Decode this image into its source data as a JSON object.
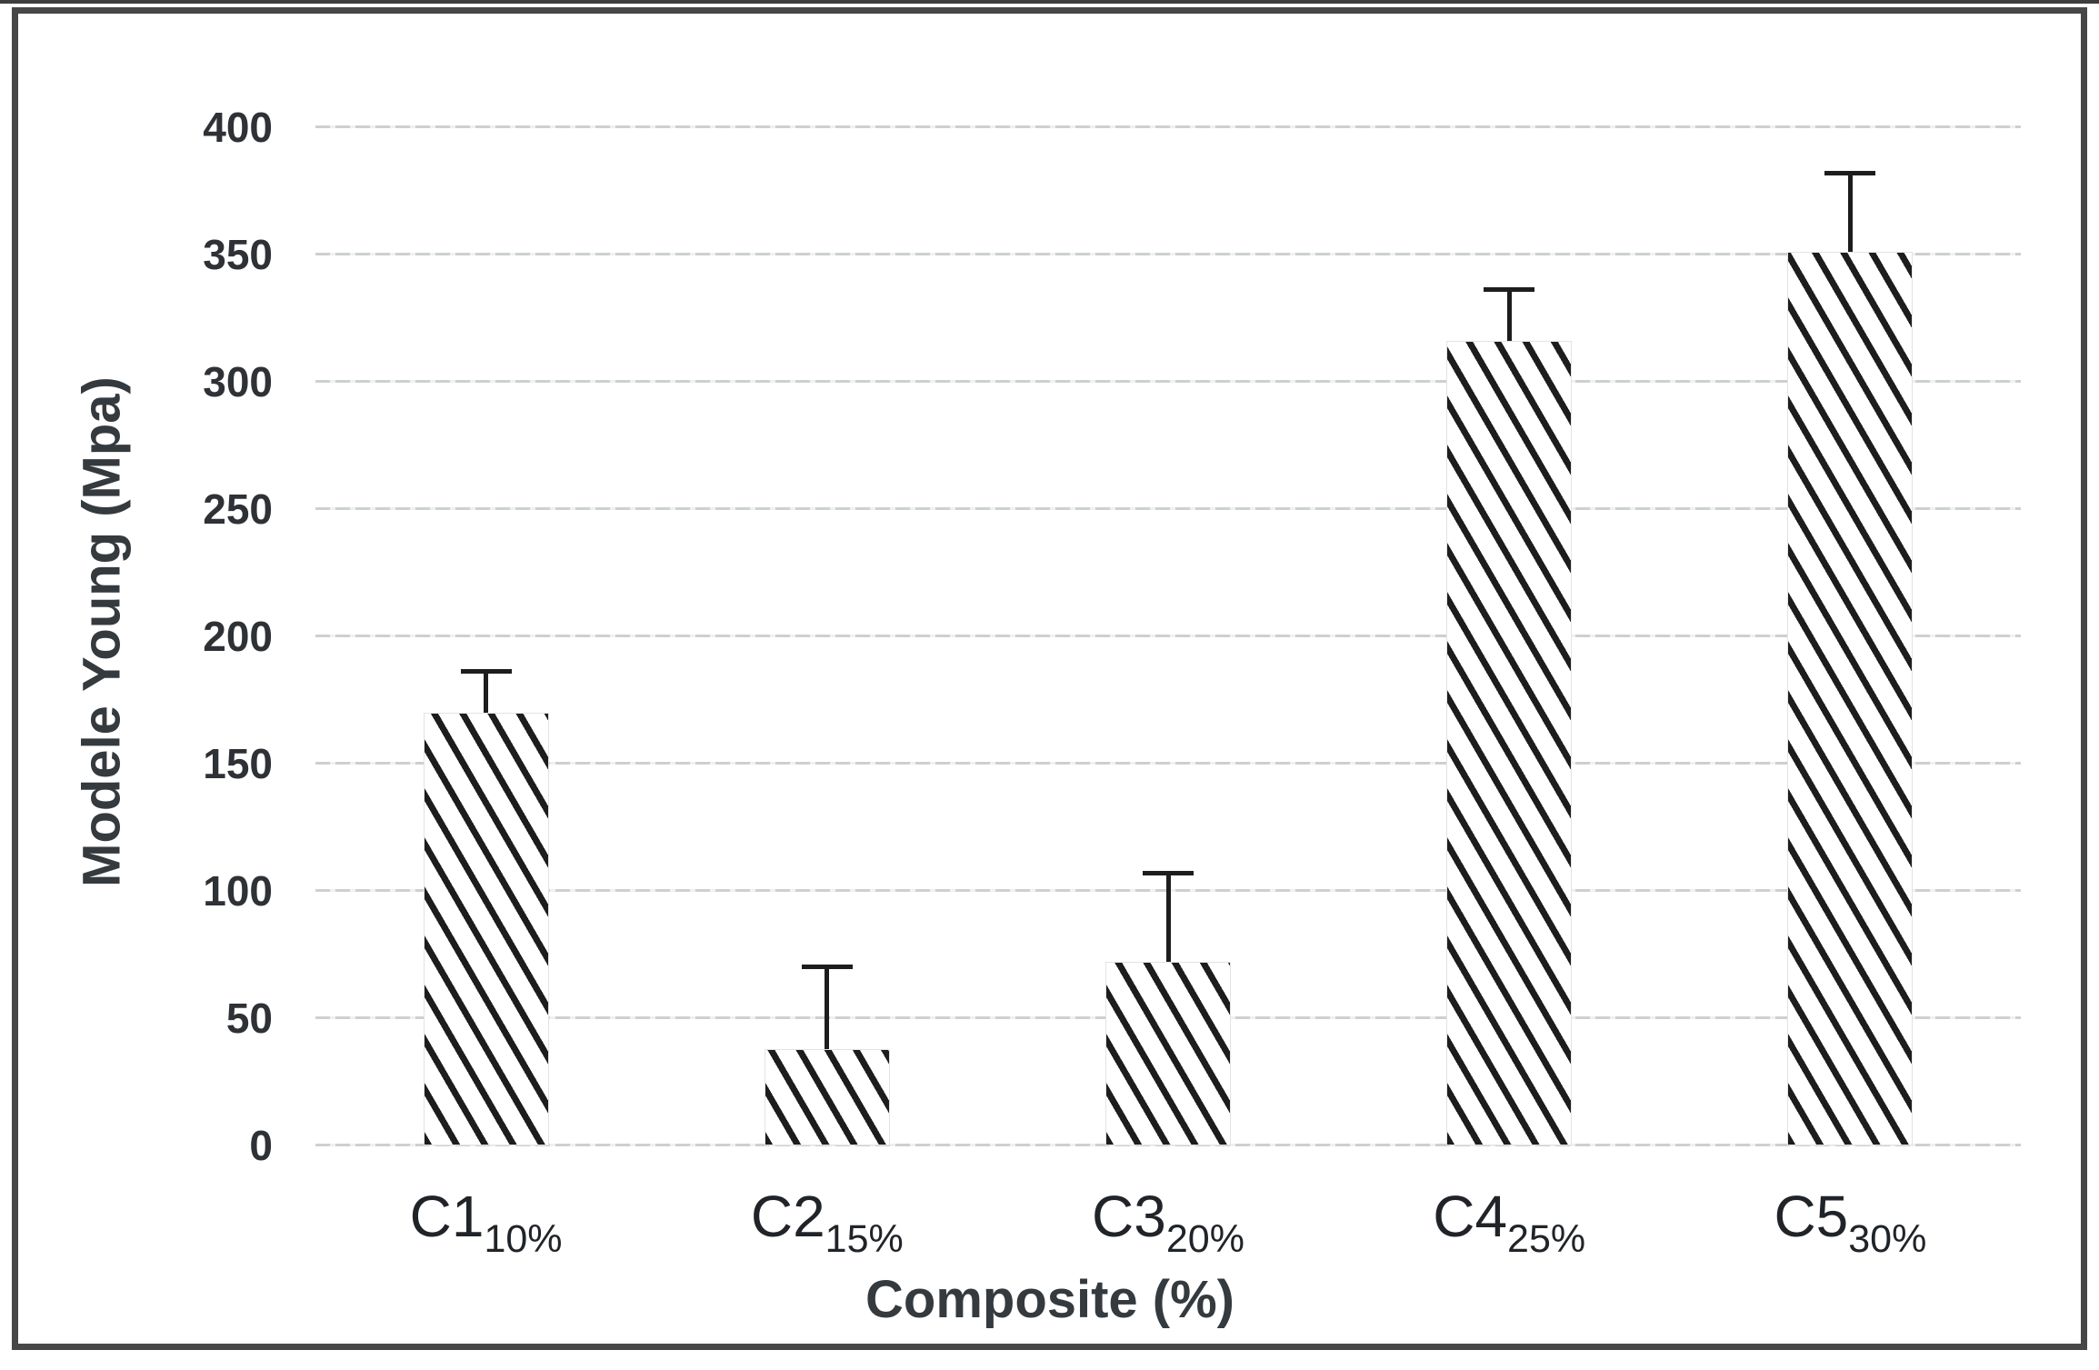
{
  "figure": {
    "background": "#ffffff",
    "frame_border_color": "#474747",
    "gridline_color": "#ccd1cf",
    "text_color": "#2e3236",
    "hatch_color": "#1d1d1d",
    "bar_fill": "#ffffff"
  },
  "chart_data": {
    "type": "bar",
    "title": "",
    "categories": [
      {
        "label": "C1",
        "subscript": "10%"
      },
      {
        "label": "C2",
        "subscript": "15%"
      },
      {
        "label": "C3",
        "subscript": "20%"
      },
      {
        "label": "C4",
        "subscript": "25%"
      },
      {
        "label": "C5",
        "subscript": "30%"
      }
    ],
    "series": [
      {
        "name": "Modele Young",
        "values": [
          170,
          38,
          72,
          316,
          351
        ],
        "error_plus": [
          17,
          33,
          36,
          21,
          32
        ]
      }
    ],
    "xlabel": "Composite (%)",
    "ylabel": "Modele Young (Mpa)",
    "ylim": [
      0,
      400
    ],
    "yticks": [
      0,
      50,
      100,
      150,
      200,
      250,
      300,
      350,
      400
    ],
    "grid": true,
    "legend": false,
    "hatch": "diagonal-backslash-steep"
  }
}
